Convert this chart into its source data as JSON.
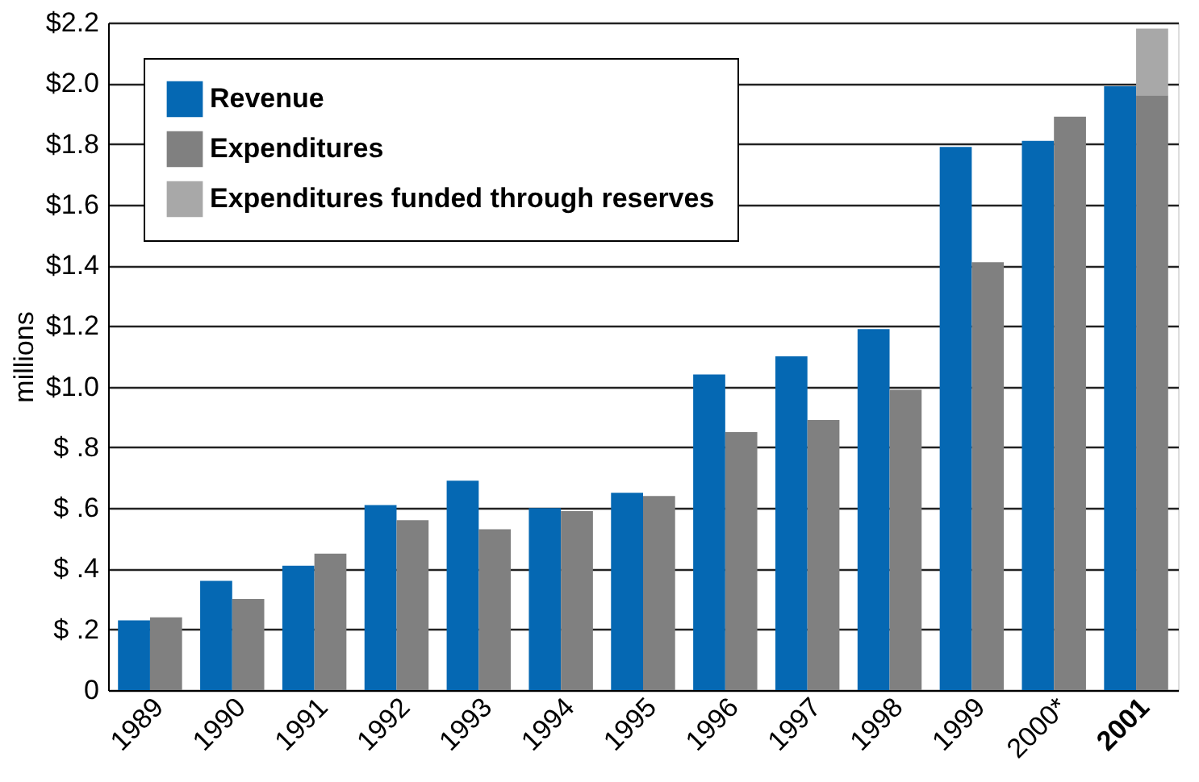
{
  "chart_data": {
    "type": "bar",
    "ylabel": "millions",
    "categories": [
      "1989",
      "1990",
      "1991",
      "1992",
      "1993",
      "1994",
      "1995",
      "1996",
      "1997",
      "1998",
      "1999",
      "2000*",
      "2001"
    ],
    "series": [
      {
        "name": "Revenue",
        "color": "#0568b3",
        "values": [
          0.23,
          0.36,
          0.41,
          0.61,
          0.69,
          0.6,
          0.65,
          1.04,
          1.1,
          1.19,
          1.79,
          1.81,
          1.99
        ]
      },
      {
        "name": "Expenditures",
        "color": "#808080",
        "values": [
          0.24,
          0.3,
          0.45,
          0.56,
          0.53,
          0.59,
          0.64,
          0.85,
          0.89,
          0.99,
          1.41,
          1.89,
          1.96
        ]
      },
      {
        "name": "Expenditures funded through reserves",
        "color": "#a8a8a8",
        "values": [
          null,
          null,
          null,
          null,
          null,
          null,
          null,
          null,
          null,
          null,
          null,
          null,
          0.22
        ],
        "base": [
          null,
          null,
          null,
          null,
          null,
          null,
          null,
          null,
          null,
          null,
          null,
          null,
          1.96
        ]
      }
    ],
    "ylim": [
      0,
      2.2
    ],
    "yticks": [
      0,
      {
        "value": 0.2,
        "label": "$ .2"
      },
      {
        "value": 0.4,
        "label": "$ .4"
      },
      {
        "value": 0.6,
        "label": "$ .6"
      },
      {
        "value": 0.8,
        "label": "$ .8"
      },
      {
        "value": 1.0,
        "label": "$1.0"
      },
      {
        "value": 1.2,
        "label": "$1.2"
      },
      {
        "value": 1.4,
        "label": "$1.4"
      },
      {
        "value": 1.6,
        "label": "$1.6"
      },
      {
        "value": 1.8,
        "label": "$1.8"
      },
      {
        "value": 2.0,
        "label": "$2.0"
      },
      {
        "value": 2.2,
        "label": "$2.2"
      }
    ],
    "grid": "y",
    "legend": "top left"
  }
}
